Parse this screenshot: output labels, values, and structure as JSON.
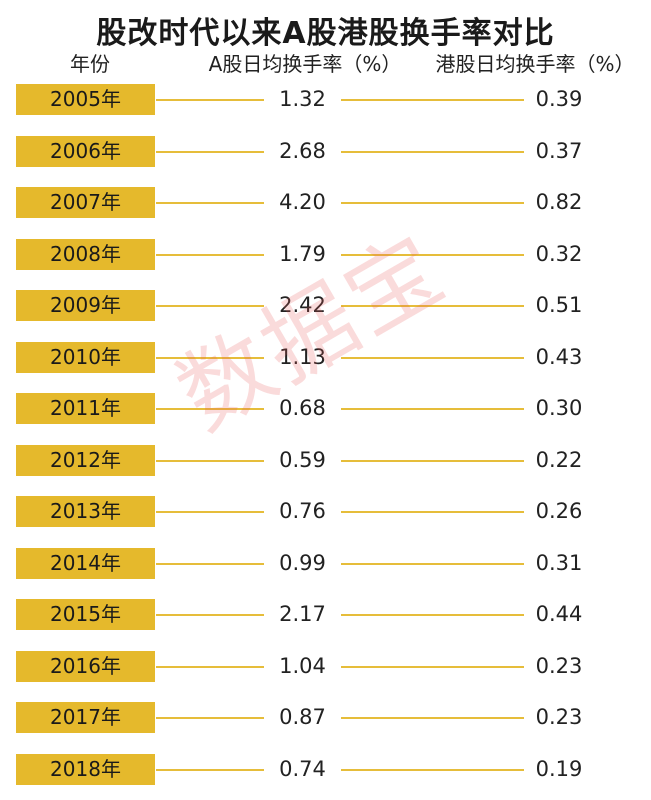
{
  "chart_data": {
    "type": "table",
    "title": "股改时代以来A股港股换手率对比",
    "columns": [
      "年份",
      "A股日均换手率（%）",
      "港股日均换手率（%）"
    ],
    "rows": [
      {
        "year": "2005年",
        "a": "1.32",
        "hk": "0.39"
      },
      {
        "year": "2006年",
        "a": "2.68",
        "hk": "0.37"
      },
      {
        "year": "2007年",
        "a": "4.20",
        "hk": "0.82"
      },
      {
        "year": "2008年",
        "a": "1.79",
        "hk": "0.32"
      },
      {
        "year": "2009年",
        "a": "2.42",
        "hk": "0.51"
      },
      {
        "year": "2010年",
        "a": "1.13",
        "hk": "0.43"
      },
      {
        "year": "2011年",
        "a": "0.68",
        "hk": "0.30"
      },
      {
        "year": "2012年",
        "a": "0.59",
        "hk": "0.22"
      },
      {
        "year": "2013年",
        "a": "0.76",
        "hk": "0.26"
      },
      {
        "year": "2014年",
        "a": "0.99",
        "hk": "0.31"
      },
      {
        "year": "2015年",
        "a": "2.17",
        "hk": "0.44"
      },
      {
        "year": "2016年",
        "a": "1.04",
        "hk": "0.23"
      },
      {
        "year": "2017年",
        "a": "0.87",
        "hk": "0.23"
      },
      {
        "year": "2018年",
        "a": "0.74",
        "hk": "0.19"
      }
    ],
    "watermark": "数据宝",
    "colors": {
      "year_box": "#e5b92c",
      "connector": "#e6bd3a",
      "watermark": "#e85a5a"
    }
  }
}
